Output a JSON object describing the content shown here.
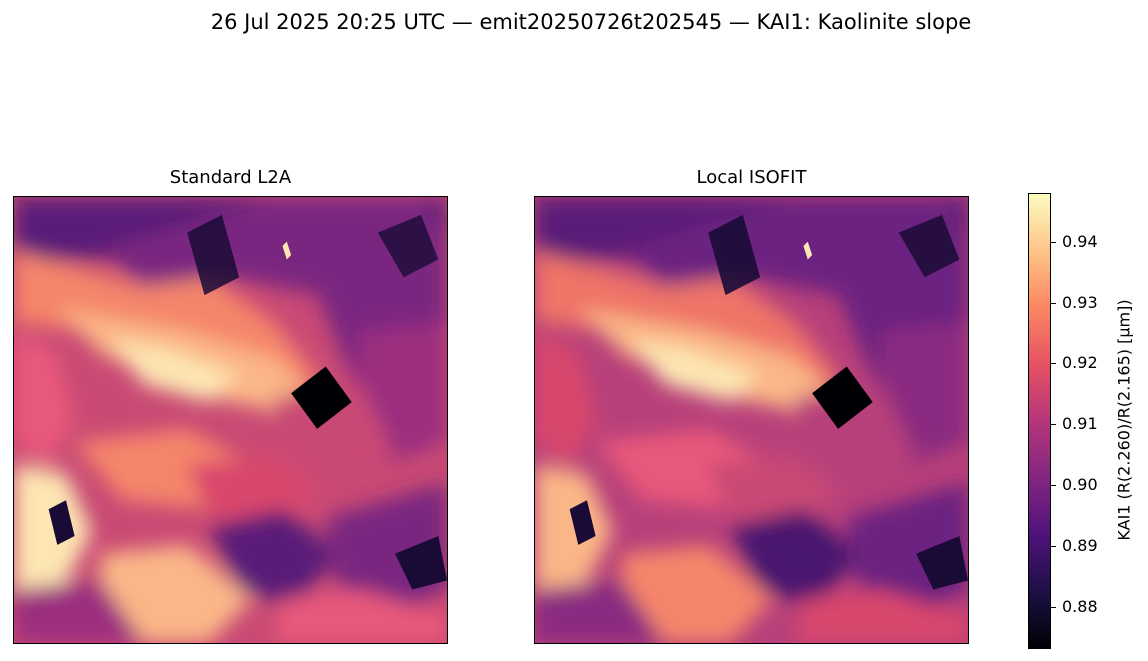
{
  "figure": {
    "title": "26 Jul 2025 20:25 UTC — emit20250726t202545 — KAI1: Kaolinite slope"
  },
  "panels": [
    {
      "title": "Standard L2A"
    },
    {
      "title": "Local ISOFIT"
    }
  ],
  "colorbar": {
    "label": "KAI1  (R(2.260)/R(2.165)  [μm])",
    "colormap": "magma",
    "range": [
      0.873,
      0.948
    ],
    "ticks": [
      "0.94",
      "0.93",
      "0.92",
      "0.91",
      "0.90",
      "0.89",
      "0.88"
    ]
  },
  "colors": {
    "dark": "#1a0b36",
    "purple": "#5a1a78",
    "magenta": "#9b2f7f",
    "rose": "#d9466c",
    "orange": "#f5856a",
    "peach": "#fbb687",
    "cream": "#fde6b2"
  }
}
